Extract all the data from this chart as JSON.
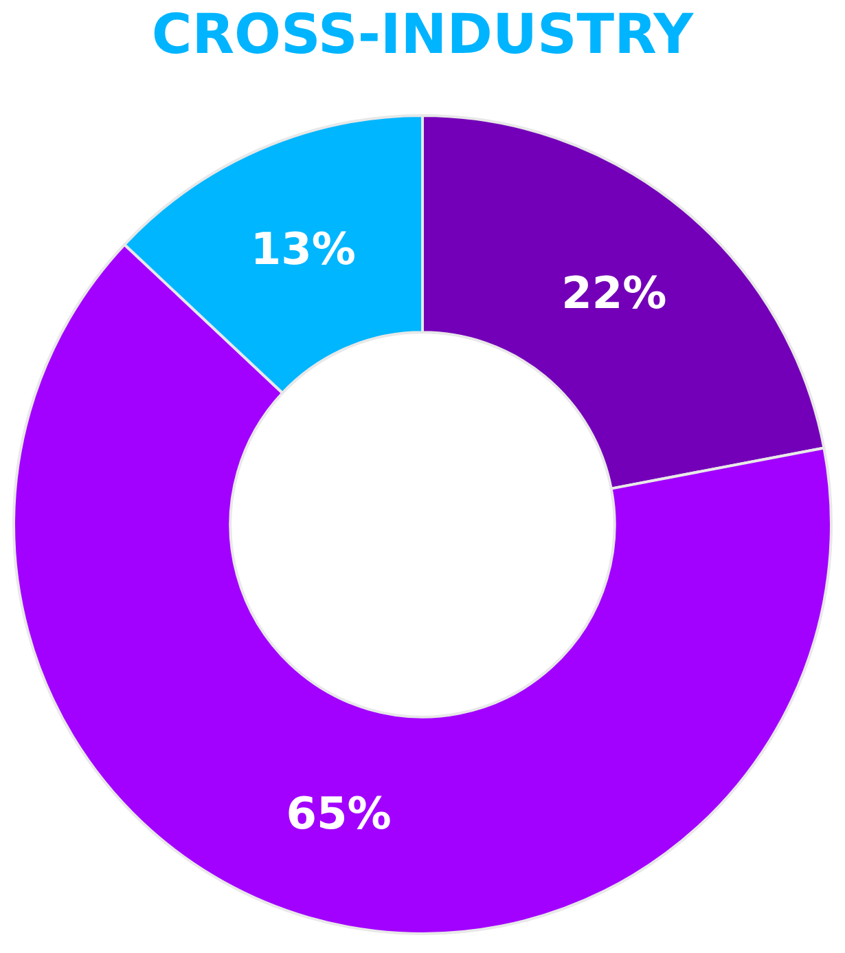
{
  "chart_data": {
    "type": "donut",
    "title": "CROSS-INDUSTRY",
    "categories": [
      null,
      null,
      null
    ],
    "values": [
      22,
      65,
      13
    ],
    "colors": [
      "#7300b8",
      "#a200ff",
      "#00b6ff"
    ],
    "value_labels": [
      "22%",
      "65%",
      "13%"
    ]
  }
}
